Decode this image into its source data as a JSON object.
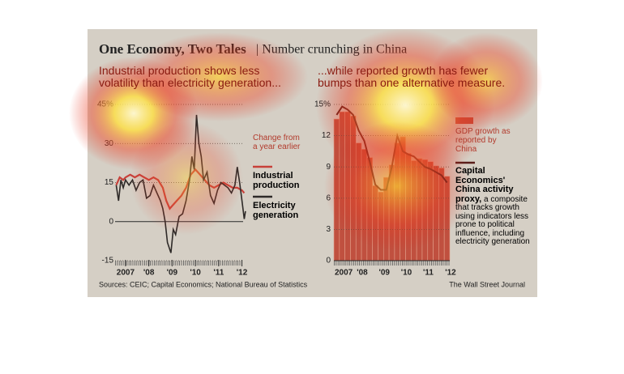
{
  "header": {
    "title": "One Economy, Two Tales",
    "subtitle": "| Number crunching in China"
  },
  "chart_data": [
    {
      "type": "line",
      "title": "Industrial production shows less volatility than electricity generation...",
      "legend_title": "Change from a year earlier",
      "xlim": [
        2006.55,
        2012.05
      ],
      "xticks": [
        {
          "value": 2007,
          "label": "2007"
        },
        {
          "value": 2008,
          "label": "'08"
        },
        {
          "value": 2009,
          "label": "'09"
        },
        {
          "value": 2010,
          "label": "'10"
        },
        {
          "value": 2011,
          "label": "'11"
        },
        {
          "value": 2012,
          "label": "'12"
        }
      ],
      "ylim": [
        -15,
        45
      ],
      "yticks": [
        -15,
        0,
        15,
        30,
        {
          "value": 45,
          "label": "45%"
        }
      ],
      "grid": true,
      "series": [
        {
          "name": "Industrial production",
          "color": "#c8413a",
          "x": [
            2006.6,
            2006.75,
            2006.9,
            2007.0,
            2007.2,
            2007.4,
            2007.6,
            2007.8,
            2008.0,
            2008.2,
            2008.4,
            2008.6,
            2008.75,
            2008.9,
            2009.0,
            2009.2,
            2009.4,
            2009.6,
            2009.8,
            2010.0,
            2010.2,
            2010.4,
            2010.6,
            2010.8,
            2011.0,
            2011.2,
            2011.4,
            2011.6,
            2011.8,
            2012.0,
            2012.1
          ],
          "values": [
            14,
            17,
            16,
            17,
            18,
            17,
            18,
            17,
            16,
            17,
            16,
            13,
            8,
            5,
            6,
            8,
            10,
            13,
            18,
            20,
            18,
            16,
            14,
            13,
            14,
            15,
            14,
            13,
            13,
            12,
            11
          ]
        },
        {
          "name": "Electricity generation",
          "color": "#2e2a28",
          "x": [
            2006.6,
            2006.7,
            2006.8,
            2006.9,
            2007.0,
            2007.15,
            2007.3,
            2007.45,
            2007.6,
            2007.75,
            2007.9,
            2008.05,
            2008.2,
            2008.35,
            2008.5,
            2008.6,
            2008.7,
            2008.8,
            2008.95,
            2009.05,
            2009.15,
            2009.3,
            2009.45,
            2009.6,
            2009.75,
            2009.85,
            2009.95,
            2010.05,
            2010.15,
            2010.25,
            2010.35,
            2010.5,
            2010.65,
            2010.8,
            2010.95,
            2011.1,
            2011.25,
            2011.4,
            2011.55,
            2011.7,
            2011.8,
            2011.9,
            2012.0,
            2012.1,
            2012.15
          ],
          "values": [
            14,
            8,
            16,
            13,
            16,
            14,
            16,
            12,
            15,
            16,
            9,
            10,
            14,
            11,
            8,
            5,
            0,
            -8,
            -12,
            -3,
            -5,
            2,
            3,
            8,
            16,
            25,
            20,
            41,
            30,
            25,
            16,
            19,
            10,
            7,
            12,
            15,
            14,
            13,
            11,
            14,
            21,
            15,
            8,
            1,
            4
          ]
        }
      ]
    },
    {
      "type": "bar",
      "title": "...while reported growth has fewer bumps than one alternative measure.",
      "categories": [
        "2007",
        null,
        null,
        null,
        "'08",
        null,
        null,
        null,
        "'09",
        null,
        null,
        null,
        "'10",
        null,
        null,
        null,
        "'11",
        null,
        null,
        null,
        "'12"
      ],
      "ylim": [
        0,
        15
      ],
      "yticks": [
        0,
        3,
        6,
        9,
        12,
        {
          "value": 15,
          "label": "15%"
        }
      ],
      "grid": true,
      "legend_note": "a composite that tracks growth using indicators less prone to political influence, including electricity generation",
      "series": [
        {
          "name": "GDP growth as reported by China",
          "color": "#c0503f",
          "values": [
            13.6,
            14.3,
            14.3,
            13.9,
            11.3,
            10.7,
            9.9,
            7.2,
            6.6,
            8.0,
            9.2,
            11.3,
            11.9,
            10.3,
            9.6,
            9.8,
            9.7,
            9.5,
            9.1,
            8.9,
            8.1
          ]
        },
        {
          "name": "Capital Economics' China activity proxy,",
          "color": "#5a1e1a",
          "values": [
            14.0,
            14.8,
            14.5,
            14.0,
            12.5,
            11.5,
            9.5,
            7.3,
            6.8,
            6.8,
            9.0,
            12.0,
            10.5,
            10.2,
            10.0,
            9.5,
            9.0,
            8.8,
            8.5,
            8.2,
            7.5
          ]
        }
      ]
    }
  ],
  "footer": {
    "sources": "Sources: CEIC; Capital Economics; National Bureau of Statistics",
    "credit": "The Wall Street Journal"
  }
}
